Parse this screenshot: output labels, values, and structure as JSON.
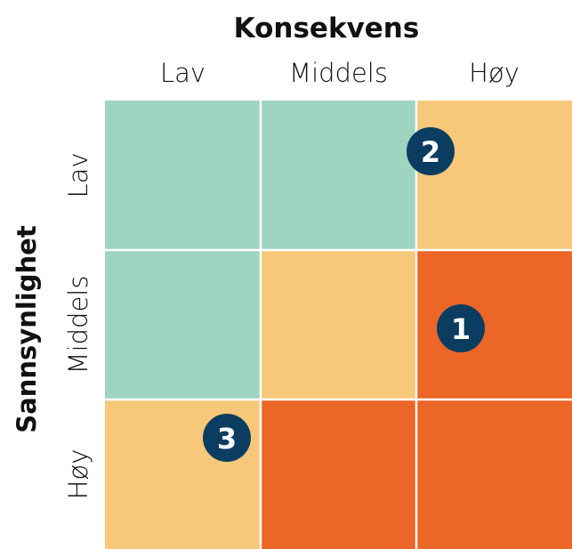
{
  "x_axis": {
    "title": "Konsekvens",
    "labels": [
      "Lav",
      "Middels",
      "Høy"
    ]
  },
  "y_axis": {
    "title": "Sannsynlighet",
    "labels": [
      "Lav",
      "Middels",
      "Høy"
    ]
  },
  "cell_colors": [
    [
      "#9fd5c0",
      "#9fd5c0",
      "#f7c87a"
    ],
    [
      "#9fd5c0",
      "#f7c87a",
      "#ec6628"
    ],
    [
      "#f7c87a",
      "#ec6628",
      "#ec6628"
    ]
  ],
  "markers": [
    {
      "label": "2",
      "color": "#0b3d61"
    },
    {
      "label": "1",
      "color": "#0b3d61"
    },
    {
      "label": "3",
      "color": "#0b3d61"
    }
  ]
}
